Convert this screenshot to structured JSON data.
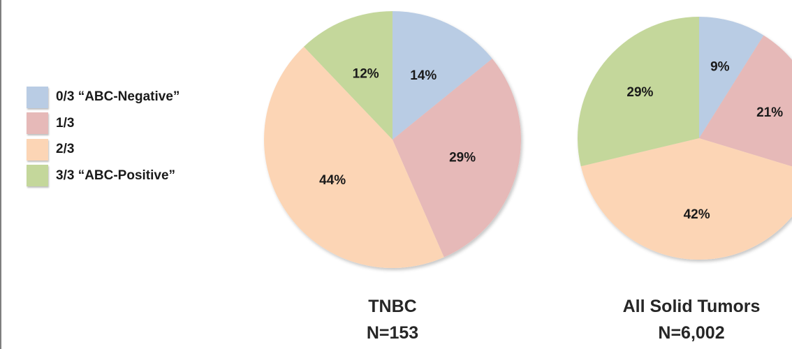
{
  "legend": [
    {
      "label": "0/3 “ABC-Negative”",
      "color": "#b9cce4"
    },
    {
      "label": "1/3",
      "color": "#e6b9b8"
    },
    {
      "label": "2/3",
      "color": "#fcd5b5"
    },
    {
      "label": "3/3 “ABC-Positive”",
      "color": "#c4d79b"
    }
  ],
  "chart_data": [
    {
      "type": "pie",
      "title": "TNBC",
      "subtitle": "N=153",
      "categories": [
        "0/3 “ABC-Negative”",
        "1/3",
        "2/3",
        "3/3 “ABC-Positive”"
      ],
      "values": [
        14,
        29,
        44,
        12
      ],
      "labels": [
        "14%",
        "29%",
        "44%",
        "12%"
      ],
      "colors": [
        "#b9cce4",
        "#e6b9b8",
        "#fcd5b5",
        "#c4d79b"
      ]
    },
    {
      "type": "pie",
      "title": "All Solid Tumors",
      "subtitle": "N=6,002",
      "categories": [
        "0/3 “ABC-Negative”",
        "1/3",
        "2/3",
        "3/3 “ABC-Positive”"
      ],
      "values": [
        9,
        21,
        42,
        29
      ],
      "labels": [
        "9%",
        "21%",
        "42%",
        "29%"
      ],
      "colors": [
        "#b9cce4",
        "#e6b9b8",
        "#fcd5b5",
        "#c4d79b"
      ]
    }
  ]
}
